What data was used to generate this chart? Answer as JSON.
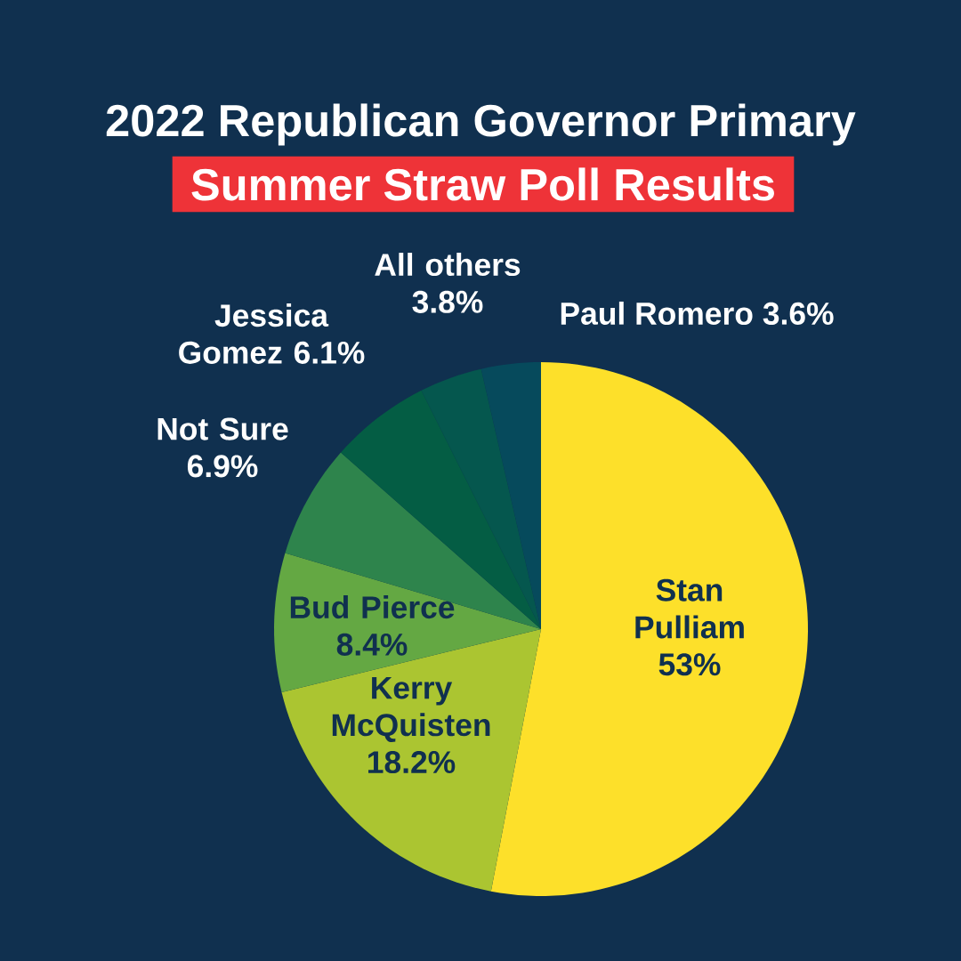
{
  "chart_data": {
    "type": "pie",
    "title": "2022 Republican Governor Primary",
    "subtitle": "Summer Straw Poll Results",
    "categories": [
      "Stan Pulliam",
      "Kerry McQuisten",
      "Bud Pierce",
      "Not Sure",
      "Jessica Gomez",
      "All others",
      "Paul Romero"
    ],
    "values": [
      53,
      18.2,
      8.4,
      6.9,
      6.1,
      3.8,
      3.6
    ],
    "value_labels": [
      "53%",
      "18.2%",
      "8.4%",
      "6.9%",
      "6.1%",
      "3.8%",
      "3.6%"
    ],
    "colors": [
      "#fde02a",
      "#abc531",
      "#64a843",
      "#2e844c",
      "#045d44",
      "#05574e",
      "#064a5c"
    ]
  }
}
